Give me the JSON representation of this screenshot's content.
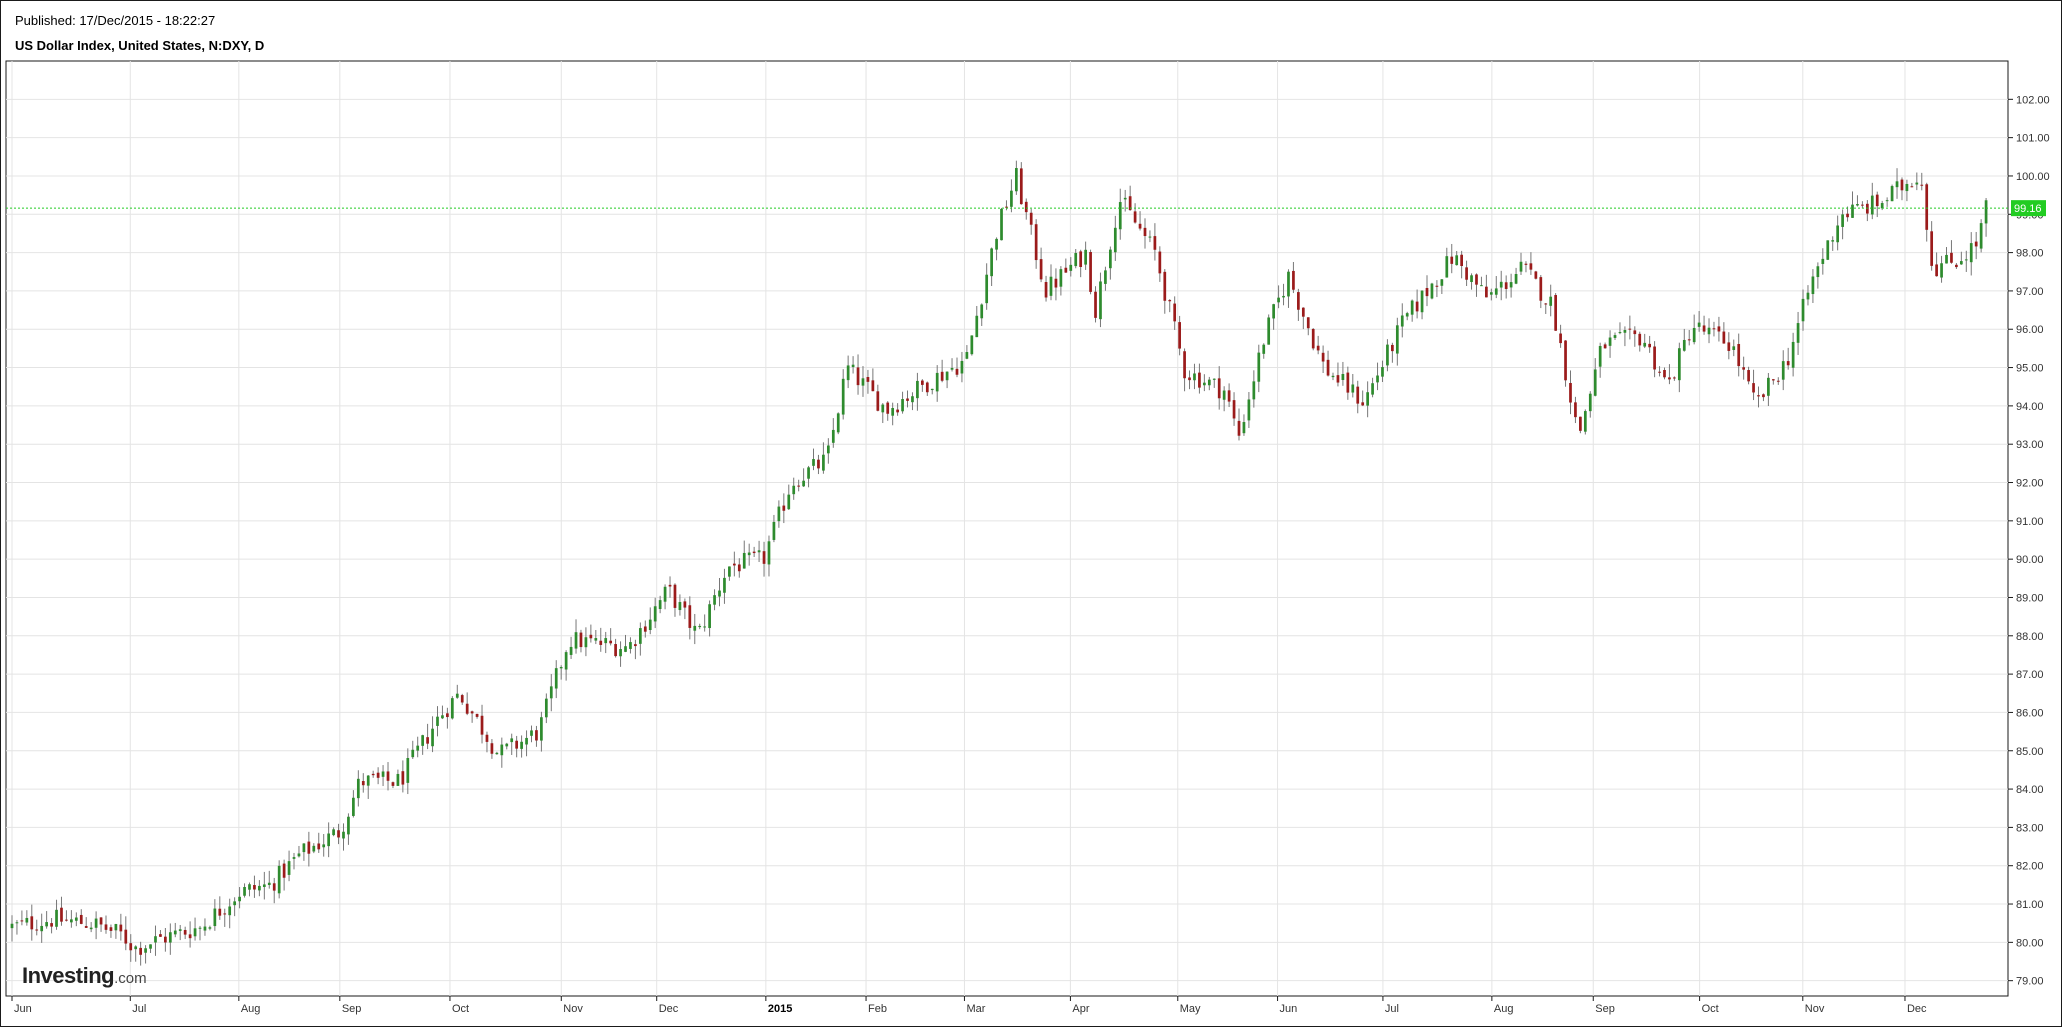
{
  "header": {
    "published": "Published: 17/Dec/2015 - 18:22:27",
    "title": "US Dollar Index, United States, N:DXY, D"
  },
  "logo": {
    "name": "Investing",
    "suffix": ".com"
  },
  "colors": {
    "up": "#2e8b2e",
    "down": "#9b1b1b",
    "grid": "#e4e4e4",
    "last_price_line": "#22cc22",
    "last_price_bg": "#22cc22"
  },
  "chart_data": {
    "type": "candlestick",
    "title": "US Dollar Index, United States, N:DXY, D",
    "ylim": [
      78.6,
      103.0
    ],
    "y_ticks": [
      "79.00",
      "80.00",
      "81.00",
      "82.00",
      "83.00",
      "84.00",
      "85.00",
      "86.00",
      "87.00",
      "88.00",
      "89.00",
      "90.00",
      "91.00",
      "92.00",
      "93.00",
      "94.00",
      "95.00",
      "96.00",
      "97.00",
      "98.00",
      "99.00",
      "100.00",
      "101.00",
      "102.00"
    ],
    "x_ticks": [
      {
        "label": "Jun",
        "pos": 0.0
      },
      {
        "label": "Jul",
        "pos": 0.0595
      },
      {
        "label": "Aug",
        "pos": 0.1141
      },
      {
        "label": "Sep",
        "pos": 0.1649
      },
      {
        "label": "Oct",
        "pos": 0.2203
      },
      {
        "label": "Nov",
        "pos": 0.2763
      },
      {
        "label": "Dec",
        "pos": 0.3243
      },
      {
        "label": "2015",
        "pos": 0.3792,
        "bold": true
      },
      {
        "label": "Feb",
        "pos": 0.4296
      },
      {
        "label": "Mar",
        "pos": 0.4791
      },
      {
        "label": "Apr",
        "pos": 0.5324
      },
      {
        "label": "May",
        "pos": 0.5864
      },
      {
        "label": "Jun",
        "pos": 0.6366
      },
      {
        "label": "Jul",
        "pos": 0.6896
      },
      {
        "label": "Aug",
        "pos": 0.7444
      },
      {
        "label": "Sep",
        "pos": 0.7954
      },
      {
        "label": "Oct",
        "pos": 0.8489
      },
      {
        "label": "Nov",
        "pos": 0.9008
      },
      {
        "label": "Dec",
        "pos": 0.9522
      }
    ],
    "last_price": 99.16,
    "last_price_label": "99.16",
    "close_anchors": [
      {
        "pos": 0.0,
        "close": 80.4
      },
      {
        "pos": 0.02,
        "close": 80.6
      },
      {
        "pos": 0.04,
        "close": 80.5
      },
      {
        "pos": 0.055,
        "close": 80.2
      },
      {
        "pos": 0.062,
        "close": 79.85
      },
      {
        "pos": 0.075,
        "close": 80.1
      },
      {
        "pos": 0.095,
        "close": 80.4
      },
      {
        "pos": 0.114,
        "close": 81.3
      },
      {
        "pos": 0.13,
        "close": 81.5
      },
      {
        "pos": 0.145,
        "close": 82.3
      },
      {
        "pos": 0.165,
        "close": 82.9
      },
      {
        "pos": 0.175,
        "close": 84.2
      },
      {
        "pos": 0.195,
        "close": 84.2
      },
      {
        "pos": 0.215,
        "close": 85.9
      },
      {
        "pos": 0.225,
        "close": 86.5
      },
      {
        "pos": 0.245,
        "close": 84.9
      },
      {
        "pos": 0.265,
        "close": 85.5
      },
      {
        "pos": 0.28,
        "close": 87.9
      },
      {
        "pos": 0.31,
        "close": 87.7
      },
      {
        "pos": 0.33,
        "close": 89.2
      },
      {
        "pos": 0.345,
        "close": 88.0
      },
      {
        "pos": 0.36,
        "close": 89.8
      },
      {
        "pos": 0.378,
        "close": 90.0
      },
      {
        "pos": 0.392,
        "close": 92.0
      },
      {
        "pos": 0.41,
        "close": 92.6
      },
      {
        "pos": 0.42,
        "close": 95.0
      },
      {
        "pos": 0.44,
        "close": 93.9
      },
      {
        "pos": 0.46,
        "close": 94.6
      },
      {
        "pos": 0.48,
        "close": 95.2
      },
      {
        "pos": 0.495,
        "close": 98.5
      },
      {
        "pos": 0.505,
        "close": 100.0
      },
      {
        "pos": 0.52,
        "close": 97.0
      },
      {
        "pos": 0.54,
        "close": 98.0
      },
      {
        "pos": 0.545,
        "close": 96.5
      },
      {
        "pos": 0.557,
        "close": 99.4
      },
      {
        "pos": 0.575,
        "close": 98.0
      },
      {
        "pos": 0.59,
        "close": 94.9
      },
      {
        "pos": 0.61,
        "close": 94.4
      },
      {
        "pos": 0.617,
        "close": 93.2
      },
      {
        "pos": 0.63,
        "close": 95.8
      },
      {
        "pos": 0.642,
        "close": 97.4
      },
      {
        "pos": 0.66,
        "close": 95.0
      },
      {
        "pos": 0.68,
        "close": 94.1
      },
      {
        "pos": 0.7,
        "close": 96.2
      },
      {
        "pos": 0.725,
        "close": 97.9
      },
      {
        "pos": 0.742,
        "close": 96.8
      },
      {
        "pos": 0.76,
        "close": 97.6
      },
      {
        "pos": 0.775,
        "close": 96.6
      },
      {
        "pos": 0.788,
        "close": 93.2
      },
      {
        "pos": 0.8,
        "close": 95.6
      },
      {
        "pos": 0.82,
        "close": 95.8
      },
      {
        "pos": 0.833,
        "close": 94.5
      },
      {
        "pos": 0.845,
        "close": 96.1
      },
      {
        "pos": 0.865,
        "close": 95.6
      },
      {
        "pos": 0.877,
        "close": 94.0
      },
      {
        "pos": 0.893,
        "close": 95.2
      },
      {
        "pos": 0.905,
        "close": 97.2
      },
      {
        "pos": 0.92,
        "close": 99.0
      },
      {
        "pos": 0.94,
        "close": 99.3
      },
      {
        "pos": 0.96,
        "close": 100.1
      },
      {
        "pos": 0.966,
        "close": 97.6
      },
      {
        "pos": 0.978,
        "close": 97.8
      },
      {
        "pos": 0.988,
        "close": 98.2
      },
      {
        "pos": 0.993,
        "close": 99.16
      }
    ]
  }
}
